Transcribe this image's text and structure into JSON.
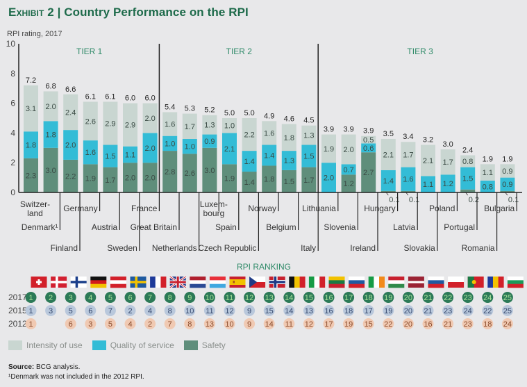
{
  "title": {
    "exhibit": "Exhibit 2",
    "separator": "|",
    "text": "Country Performance on the RPI"
  },
  "colors": {
    "intensity": "#c9d6d1",
    "quality": "#33bcd6",
    "safety": "#5f8e7b",
    "tier_text": "#2f8a68",
    "rank2017_bg": "#2c7a57",
    "rank2017_fg": "#a8e29a",
    "rank2015_bg": "#b9c8dc",
    "rank2015_fg": "#33466b",
    "rank2012_bg": "#f0c9b2",
    "rank2012_fg": "#8a4a2a"
  },
  "chart_data": {
    "type": "bar",
    "stacked": true,
    "title": "Country Performance on the RPI",
    "ylabel": "RPI rating, 2017",
    "xlabel": "",
    "ylim": [
      0,
      10
    ],
    "yticks": [
      0,
      2,
      4,
      6,
      8,
      10
    ],
    "grid": false,
    "tiers": [
      {
        "label": "TIER 1",
        "start": 0,
        "end": 6
      },
      {
        "label": "TIER 2",
        "start": 7,
        "end": 14
      },
      {
        "label": "TIER 3",
        "start": 15,
        "end": 24
      }
    ],
    "categories": [
      "Switzer-land",
      "Denmark¹",
      "Finland",
      "Germany",
      "Austria",
      "Sweden",
      "France",
      "Great Britain",
      "Netherlands",
      "Luxem-bourg",
      "Spain",
      "Czech Republic",
      "Norway",
      "Belgium",
      "Italy",
      "Lithuania",
      "Slovenia",
      "Ireland",
      "Hungary",
      "Latvia",
      "Slovakia",
      "Poland",
      "Portugal",
      "Romania",
      "Bulgaria"
    ],
    "totals": [
      7.2,
      6.8,
      6.6,
      6.1,
      6.1,
      6.0,
      6.0,
      5.4,
      5.3,
      5.2,
      5.0,
      5.0,
      4.9,
      4.6,
      4.5,
      3.9,
      3.9,
      3.9,
      3.5,
      3.4,
      3.2,
      3.0,
      2.4,
      1.9,
      1.9
    ],
    "series": [
      {
        "name": "Safety",
        "values": [
          2.3,
          3.0,
          2.2,
          1.9,
          1.7,
          2.0,
          2.0,
          2.8,
          2.6,
          3.0,
          1.9,
          1.4,
          1.8,
          1.5,
          1.7,
          0,
          1.2,
          2.7,
          0.1,
          0.1,
          0,
          0,
          0.2,
          0,
          0.1
        ]
      },
      {
        "name": "Quality of service",
        "values": [
          1.8,
          1.8,
          2.0,
          1.6,
          1.5,
          1.1,
          2.0,
          1.0,
          1.0,
          0.9,
          2.1,
          1.4,
          1.4,
          1.3,
          1.5,
          2.0,
          0.7,
          0.6,
          1.4,
          1.6,
          1.1,
          1.2,
          1.5,
          0.8,
          0.9
        ]
      },
      {
        "name": "Intensity of use",
        "values": [
          3.1,
          2.0,
          2.4,
          2.6,
          2.9,
          2.9,
          2.0,
          1.6,
          1.7,
          1.3,
          1.0,
          2.2,
          1.6,
          1.8,
          1.3,
          1.9,
          2.0,
          0.5,
          2.1,
          1.7,
          2.1,
          1.7,
          0.8,
          1.1,
          0.9
        ]
      }
    ],
    "callouts": [
      {
        "index": 18,
        "label": "0.1"
      },
      {
        "index": 19,
        "label": "0.1"
      },
      {
        "index": 22,
        "label": "0.2"
      },
      {
        "index": 24,
        "label": "0.1"
      }
    ]
  },
  "ranking": {
    "title": "RPI RANKING",
    "flags": [
      "ch",
      "dk",
      "fi",
      "de",
      "at",
      "se",
      "fr",
      "gb",
      "nl",
      "lu",
      "es",
      "cz",
      "no",
      "be",
      "it",
      "lt",
      "si",
      "ie",
      "hu",
      "lv",
      "sk",
      "pl",
      "pt",
      "ro",
      "bg"
    ],
    "rows": [
      {
        "year": "2017",
        "values": [
          "1",
          "2",
          "3",
          "4",
          "5",
          "6",
          "7",
          "8",
          "9",
          "10",
          "11",
          "12",
          "13",
          "14",
          "15",
          "16",
          "17",
          "18",
          "19",
          "20",
          "21",
          "22",
          "23",
          "24",
          "25"
        ]
      },
      {
        "year": "2015",
        "values": [
          "1",
          "3",
          "5",
          "6",
          "7",
          "2",
          "4",
          "8",
          "10",
          "11",
          "12",
          "9",
          "15",
          "14",
          "13",
          "16",
          "18",
          "17",
          "19",
          "20",
          "21",
          "23",
          "24",
          "22",
          "25"
        ]
      },
      {
        "year": "2012",
        "values": [
          "1",
          "",
          "6",
          "3",
          "5",
          "4",
          "2",
          "7",
          "8",
          "13",
          "10",
          "9",
          "14",
          "11",
          "12",
          "17",
          "19",
          "15",
          "22",
          "20",
          "16",
          "21",
          "23",
          "18",
          "24"
        ]
      }
    ]
  },
  "legend": [
    {
      "key": "intensity",
      "label": "Intensity of use"
    },
    {
      "key": "quality",
      "label": "Quality of service"
    },
    {
      "key": "safety",
      "label": "Safety"
    }
  ],
  "source": {
    "label": "Source:",
    "text": "BCG analysis."
  },
  "footnote": "¹Denmark was not included in the 2012 RPI."
}
